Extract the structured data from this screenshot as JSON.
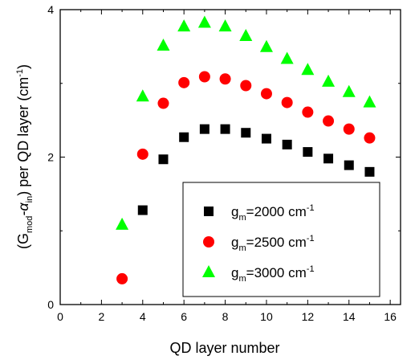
{
  "chart_data": {
    "type": "scatter",
    "title": "",
    "xlabel": "QD layer number",
    "ylabel": {
      "prefix": "(G",
      "sub1": "mod",
      "mid": "-α",
      "sub2": "in",
      "suffix": ") per QD layer (cm",
      "sup": "-1",
      "end": ")"
    },
    "xlim": [
      0,
      16.5
    ],
    "ylim": [
      0,
      4
    ],
    "xticks": [
      0,
      2,
      4,
      6,
      8,
      10,
      12,
      14,
      16
    ],
    "yticks": [
      0,
      2,
      4
    ],
    "grid": false,
    "legend_position": "bottom-right",
    "series": [
      {
        "name": {
          "base": "g",
          "sub": "m",
          "rest": "=2000 cm",
          "sup": "-1"
        },
        "marker": "square",
        "color": "#000000",
        "x": [
          4,
          5,
          6,
          7,
          8,
          9,
          10,
          11,
          12,
          13,
          14,
          15
        ],
        "y": [
          1.28,
          1.97,
          2.27,
          2.38,
          2.38,
          2.33,
          2.25,
          2.17,
          2.07,
          1.98,
          1.89,
          1.8
        ]
      },
      {
        "name": {
          "base": "g",
          "sub": "m",
          "rest": "=2500 cm",
          "sup": "-1"
        },
        "marker": "circle",
        "color": "#ff0000",
        "x": [
          3,
          4,
          5,
          6,
          7,
          8,
          9,
          10,
          11,
          12,
          13,
          14,
          15
        ],
        "y": [
          0.35,
          2.04,
          2.73,
          3.01,
          3.09,
          3.06,
          2.97,
          2.86,
          2.74,
          2.61,
          2.49,
          2.38,
          2.26
        ]
      },
      {
        "name": {
          "base": "g",
          "sub": "m",
          "rest": "=3000 cm",
          "sup": "-1"
        },
        "marker": "triangle",
        "color": "#00ff00",
        "x": [
          3,
          4,
          5,
          6,
          7,
          8,
          9,
          10,
          11,
          12,
          13,
          14,
          15
        ],
        "y": [
          1.08,
          2.82,
          3.51,
          3.77,
          3.82,
          3.77,
          3.64,
          3.49,
          3.33,
          3.18,
          3.02,
          2.88,
          2.74
        ]
      }
    ]
  }
}
